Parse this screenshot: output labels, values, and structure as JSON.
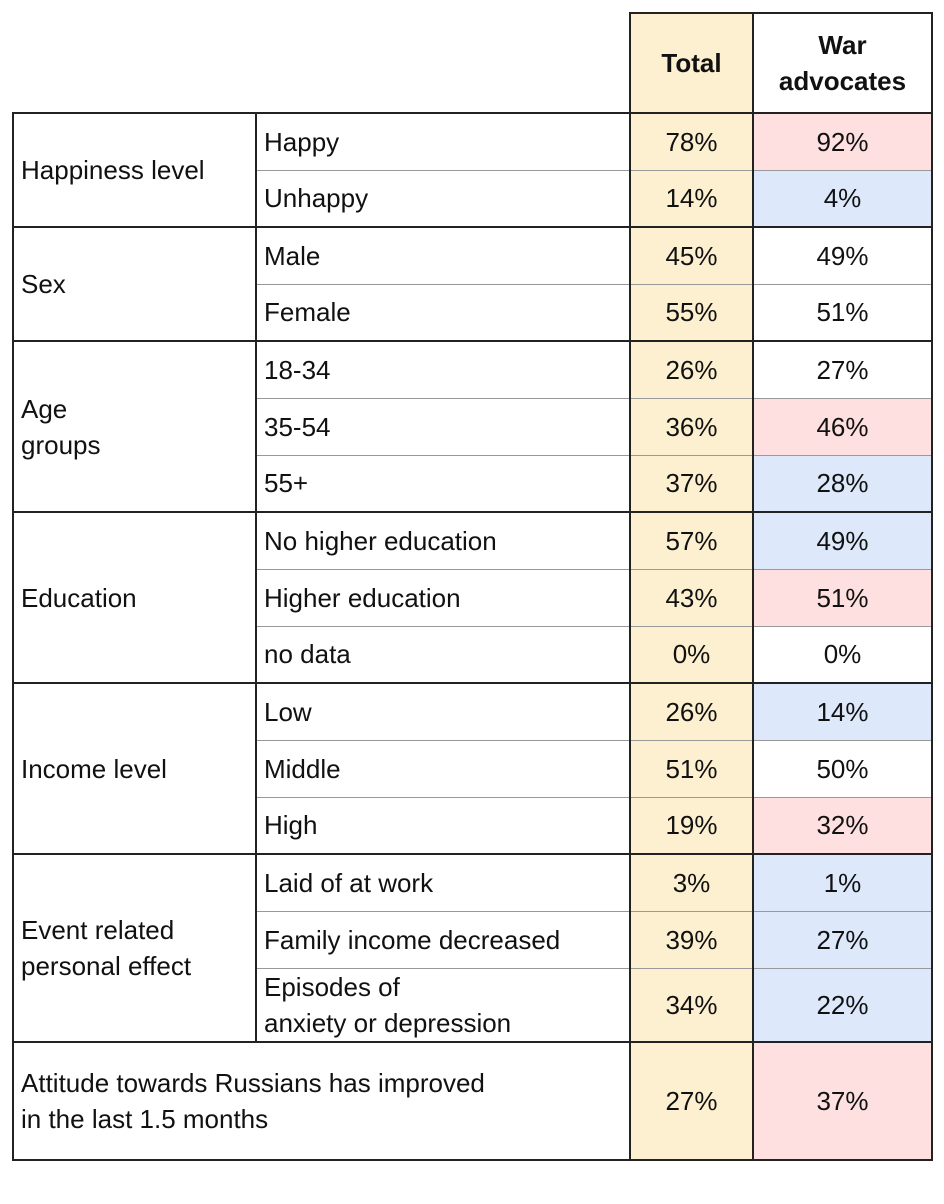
{
  "header": {
    "total": "Total",
    "war_advocates": "War\nadvocates",
    "total_color": "#fdf0d0"
  },
  "groups": [
    {
      "label": "Happiness level",
      "rows": [
        {
          "label": "Happy",
          "total": "78%",
          "war": "92%",
          "war_color": "#fde0df"
        },
        {
          "label": "Unhappy",
          "total": "14%",
          "war": "4%",
          "war_color": "#dde9fb"
        }
      ]
    },
    {
      "label": "Sex",
      "rows": [
        {
          "label": "Male",
          "total": "45%",
          "war": "49%",
          "war_color": "#ffffff"
        },
        {
          "label": "Female",
          "total": "55%",
          "war": "51%",
          "war_color": "#ffffff"
        }
      ]
    },
    {
      "label": "Age\ngroups",
      "rows": [
        {
          "label": "18-34",
          "total": "26%",
          "war": "27%",
          "war_color": "#ffffff"
        },
        {
          "label": "35-54",
          "total": "36%",
          "war": "46%",
          "war_color": "#fde0df"
        },
        {
          "label": "55+",
          "total": "37%",
          "war": "28%",
          "war_color": "#dde9fb"
        }
      ]
    },
    {
      "label": "Education",
      "rows": [
        {
          "label": "No higher education",
          "total": "57%",
          "war": "49%",
          "war_color": "#dde9fb"
        },
        {
          "label": "Higher education",
          "total": "43%",
          "war": "51%",
          "war_color": "#fde0df"
        },
        {
          "label": "no data",
          "total": "0%",
          "war": "0%",
          "war_color": "#ffffff"
        }
      ]
    },
    {
      "label": "Income level",
      "rows": [
        {
          "label": "Low",
          "total": "26%",
          "war": "14%",
          "war_color": "#dde9fb"
        },
        {
          "label": "Middle",
          "total": "51%",
          "war": "50%",
          "war_color": "#ffffff"
        },
        {
          "label": "High",
          "total": "19%",
          "war": "32%",
          "war_color": "#fde0df"
        }
      ]
    },
    {
      "label": "Event related\npersonal effect",
      "rows": [
        {
          "label": "Laid of at work",
          "total": "3%",
          "war": "1%",
          "war_color": "#dde9fb"
        },
        {
          "label": "Family income decreased",
          "total": "39%",
          "war": "27%",
          "war_color": "#dde9fb"
        },
        {
          "label": "Episodes of\nanxiety or depression",
          "total": "34%",
          "war": "22%",
          "war_color": "#dde9fb"
        }
      ]
    }
  ],
  "footer": {
    "label": "Attitude towards Russians has improved\nin the last 1.5 months",
    "total": "27%",
    "war": "37%",
    "war_color": "#fde0df"
  }
}
